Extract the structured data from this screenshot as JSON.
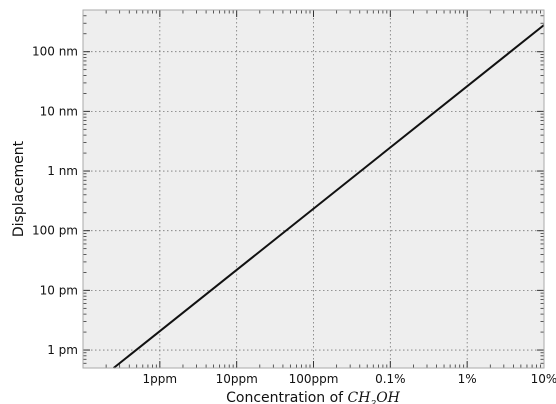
{
  "chart_data": {
    "type": "line",
    "xlabel_prefix": "Concentration of ",
    "xlabel_formula": {
      "base1": "CH",
      "sub": "3",
      "base2": "OH"
    },
    "ylabel": "Displacement",
    "x_scale": "log",
    "y_scale": "log",
    "xlim": [
      1e-07,
      0.1
    ],
    "ylim": [
      5e-13,
      5e-07
    ],
    "grid": true,
    "x_ticks": [
      {
        "value": 1e-06,
        "label": "1ppm"
      },
      {
        "value": 1e-05,
        "label": "10ppm"
      },
      {
        "value": 0.0001,
        "label": "100ppm"
      },
      {
        "value": 0.001,
        "label": "0.1%"
      },
      {
        "value": 0.01,
        "label": "1%"
      },
      {
        "value": 0.1,
        "label": "10%"
      }
    ],
    "y_ticks": [
      {
        "value": 1e-12,
        "label": "1 pm"
      },
      {
        "value": 1e-11,
        "label": "10 pm"
      },
      {
        "value": 1e-10,
        "label": "100 pm"
      },
      {
        "value": 1e-09,
        "label": "1 nm"
      },
      {
        "value": 1e-08,
        "label": "10 nm"
      },
      {
        "value": 1e-07,
        "label": "100 nm"
      }
    ],
    "series": [
      {
        "x": [
          2.5e-07,
          0.1
        ],
        "y": [
          5e-13,
          2.8e-07
        ]
      }
    ],
    "colors": {
      "background": "#eeeeee",
      "line": "#111111",
      "grid": "#777777"
    }
  }
}
